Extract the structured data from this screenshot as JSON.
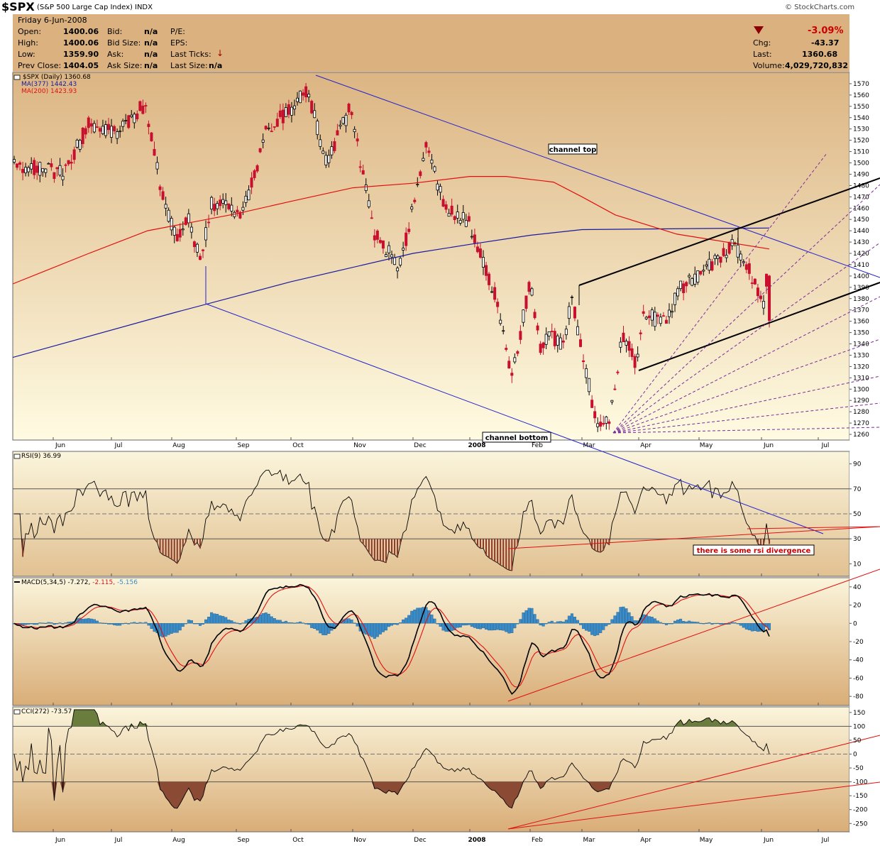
{
  "header": {
    "symbol": "$SPX",
    "name": "(S&P 500 Large Cap Index)",
    "exchange": "INDX",
    "copyright": "© StockCharts.com",
    "date": "Friday  6-Jun-2008",
    "labels": {
      "open": "Open:",
      "high": "High:",
      "low": "Low:",
      "prev": "Prev Close:",
      "bid": "Bid:",
      "bidsize": "Bid Size:",
      "ask": "Ask:",
      "asksize": "Ask Size:",
      "pe": "P/E:",
      "eps": "EPS:",
      "lastticks": "Last Ticks:",
      "lastsize": "Last Size:",
      "chg": "Chg:",
      "last": "Last:",
      "volume": "Volume:"
    },
    "open": "1400.06",
    "high": "1400.06",
    "low": "1359.90",
    "prev_close": "1404.05",
    "bid": "n/a",
    "bid_size": "n/a",
    "ask": "n/a",
    "ask_size": "n/a",
    "last_size": "n/a",
    "pct_change": "-3.09%",
    "chg": "-43.37",
    "last": "1360.68",
    "volume": "4,029,720,832"
  },
  "months": [
    "Jun",
    "Jul",
    "Aug",
    "Sep",
    "Oct",
    "Nov",
    "Dec",
    "2008",
    "Feb",
    "Mar",
    "Apr",
    "May",
    "Jun",
    "Jul"
  ],
  "chart_data": [
    {
      "type": "candlestick",
      "title": "$SPX (Daily) 1360.68",
      "series": [
        {
          "name": "$SPX (Daily) 1360.68"
        },
        {
          "name": "MA(377) 1442.43",
          "color": "#1a1aa0"
        },
        {
          "name": "MA(200) 1423.93",
          "color": "#e01010"
        }
      ],
      "ylim": [
        1255,
        1580
      ],
      "yticks": [
        1260,
        1270,
        1280,
        1290,
        1300,
        1310,
        1320,
        1330,
        1340,
        1350,
        1360,
        1370,
        1380,
        1390,
        1400,
        1410,
        1420,
        1430,
        1440,
        1450,
        1460,
        1470,
        1480,
        1490,
        1500,
        1510,
        1520,
        1530,
        1540,
        1550,
        1560,
        1570
      ],
      "close_path": [
        [
          "2007-05-22",
          1500
        ],
        [
          "2007-06-07",
          1490
        ],
        [
          "2007-06-20",
          1535
        ],
        [
          "2007-07-05",
          1525
        ],
        [
          "2007-07-19",
          1553
        ],
        [
          "2007-07-26",
          1482
        ],
        [
          "2007-08-03",
          1433
        ],
        [
          "2007-08-10",
          1453
        ],
        [
          "2007-08-16",
          1411
        ],
        [
          "2007-08-22",
          1464
        ],
        [
          "2007-08-29",
          1463
        ],
        [
          "2007-09-07",
          1453
        ],
        [
          "2007-09-19",
          1529
        ],
        [
          "2007-10-01",
          1547
        ],
        [
          "2007-10-09",
          1565
        ],
        [
          "2007-10-19",
          1500
        ],
        [
          "2007-10-31",
          1549
        ],
        [
          "2007-11-12",
          1439
        ],
        [
          "2007-11-26",
          1407
        ],
        [
          "2007-12-10",
          1515
        ],
        [
          "2007-12-20",
          1460
        ],
        [
          "2008-01-02",
          1447
        ],
        [
          "2008-01-15",
          1380
        ],
        [
          "2008-01-23",
          1310
        ],
        [
          "2008-02-01",
          1395
        ],
        [
          "2008-02-07",
          1336
        ],
        [
          "2008-02-12",
          1348
        ],
        [
          "2008-02-21",
          1340
        ],
        [
          "2008-02-26",
          1381
        ],
        [
          "2008-03-10",
          1273
        ],
        [
          "2008-03-17",
          1276
        ],
        [
          "2008-03-24",
          1349
        ],
        [
          "2008-03-31",
          1322
        ],
        [
          "2008-04-04",
          1370
        ],
        [
          "2008-04-10",
          1360
        ],
        [
          "2008-04-16",
          1365
        ],
        [
          "2008-04-21",
          1388
        ],
        [
          "2008-04-28",
          1397
        ],
        [
          "2008-05-05",
          1407
        ],
        [
          "2008-05-15",
          1423
        ],
        [
          "2008-05-19",
          1427
        ],
        [
          "2008-05-29",
          1398
        ],
        [
          "2008-06-03",
          1377
        ],
        [
          "2008-06-05",
          1404
        ],
        [
          "2008-06-06",
          1360.68
        ]
      ],
      "annotations": [
        "channel top",
        "channel bottom"
      ]
    },
    {
      "type": "line",
      "title": "RSI(9) 36.99",
      "series": [
        {
          "name": "RSI(9) 36.99"
        }
      ],
      "ylim": [
        0,
        100
      ],
      "yticks": [
        10,
        30,
        50,
        70,
        90
      ],
      "reference_lines": [
        30,
        50,
        70
      ],
      "annotations": [
        "there is some rsi divergence"
      ]
    },
    {
      "type": "line",
      "title": "MACD(5,34,5) -7.272, -2.115, -5.156",
      "series": [
        {
          "name": "MACD(5,34,5)",
          "value": "-7.272",
          "color": "#000000"
        },
        {
          "name": "signal",
          "value": "-2.115",
          "color": "#e01010"
        },
        {
          "name": "histogram",
          "value": "-5.156",
          "color": "#3a8cc8"
        }
      ],
      "ylim": [
        -90,
        50
      ],
      "yticks": [
        -80,
        -60,
        -40,
        -20,
        0,
        20,
        40
      ]
    },
    {
      "type": "area",
      "title": "CCI(272) -73.57",
      "series": [
        {
          "name": "CCI(272) -73.57"
        }
      ],
      "ylim": [
        -280,
        170
      ],
      "yticks": [
        -250,
        -200,
        -150,
        -100,
        -50,
        0,
        50,
        100,
        150
      ],
      "reference_lines": [
        -100,
        0,
        100
      ]
    }
  ]
}
